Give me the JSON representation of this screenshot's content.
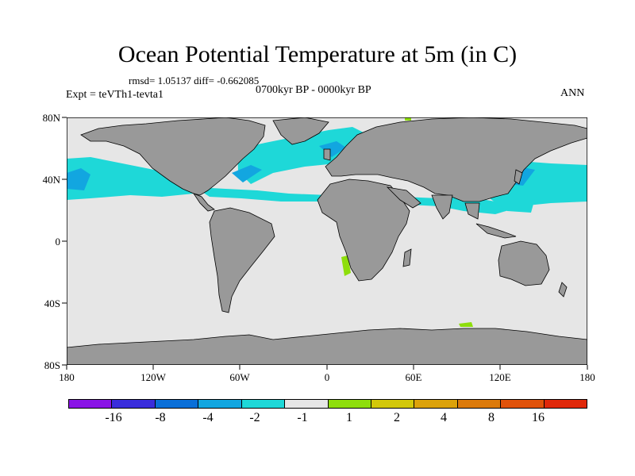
{
  "title": "Ocean Potential Temperature at 5m (in C)",
  "stats": "rmsd= 1.05137 diff= -0.662085",
  "expt": "Expt = teVTh1-tevta1",
  "period": "0700kyr BP - 0000kyr BP",
  "season": "ANN",
  "lat_labels": [
    "80N",
    "40N",
    "0",
    "40S",
    "80S"
  ],
  "lon_labels": [
    "180",
    "120W",
    "60W",
    "0",
    "60E",
    "120E",
    "180"
  ],
  "colorbar": {
    "colors": [
      "#8a14e6",
      "#3a2ddc",
      "#0a6fd8",
      "#12a6e0",
      "#1ed8d8",
      "#e6e6e6",
      "#8ede0c",
      "#d2c80a",
      "#dca20a",
      "#dc7a0a",
      "#e0520a",
      "#e0280a"
    ],
    "labels": [
      "-16",
      "-8",
      "-4",
      "-2",
      "-1",
      "1",
      "2",
      "4",
      "8",
      "16"
    ]
  },
  "map_colors": {
    "ocean": "#e6e6e6",
    "land": "#999999",
    "cool_1": "#1ed8d8",
    "cool_2": "#12a6e0",
    "warm": "#8ede0c"
  }
}
